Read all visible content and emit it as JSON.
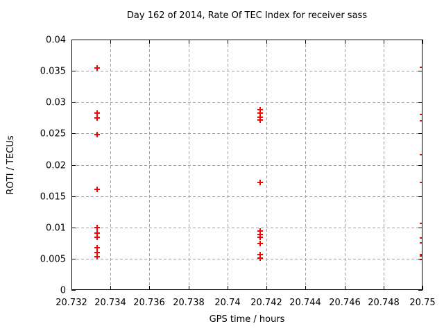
{
  "chart_data": {
    "type": "scatter",
    "title": "Day 162 of 2014, Rate Of TEC Index for receiver sass",
    "xlabel": "GPS time / hours",
    "ylabel": "ROTI / TECUs",
    "xlim": [
      20.732,
      20.75
    ],
    "ylim": [
      0,
      0.04
    ],
    "grid": true,
    "legend": "none",
    "x_ticks": {
      "values": [
        20.732,
        20.734,
        20.736,
        20.738,
        20.74,
        20.742,
        20.744,
        20.746,
        20.748,
        20.75
      ],
      "labels": [
        "20.732",
        "20.734",
        "20.736",
        "20.738",
        "20.74",
        "20.742",
        "20.744",
        "20.746",
        "20.748",
        "20.75"
      ]
    },
    "y_ticks": {
      "values": [
        0,
        0.005,
        0.01,
        0.015,
        0.02,
        0.025,
        0.03,
        0.035,
        0.04
      ],
      "labels": [
        "0",
        "0.005",
        "0.01",
        "0.015",
        "0.02",
        "0.025",
        "0.03",
        "0.035",
        "0.04"
      ]
    },
    "colors": {
      "marker": "#ff0000",
      "grid": "#9e9e9e",
      "axis": "#000000",
      "text": "#000000"
    },
    "marker": {
      "shape": "plus",
      "size": 9,
      "stroke_width": 2
    },
    "series": [
      {
        "name": "ROTI",
        "x": [
          20.73333,
          20.73333,
          20.73333,
          20.73333,
          20.73333,
          20.73333,
          20.73333,
          20.73333,
          20.73333,
          20.73333,
          20.73333,
          20.74167,
          20.74167,
          20.74167,
          20.74167,
          20.74167,
          20.74167,
          20.74167,
          20.74167,
          20.74167,
          20.74167,
          20.74167,
          20.75,
          20.75,
          20.75,
          20.75,
          20.75,
          20.75,
          20.75,
          20.75,
          20.75,
          20.75,
          20.75
        ],
        "y": [
          0.0355,
          0.0282,
          0.0275,
          0.0248,
          0.0161,
          0.01,
          0.0091,
          0.0084,
          0.0068,
          0.006,
          0.0053,
          0.0288,
          0.0283,
          0.0276,
          0.0271,
          0.0172,
          0.0094,
          0.0089,
          0.0084,
          0.0074,
          0.0056,
          0.0051,
          0.0356,
          0.028,
          0.027,
          0.0216,
          0.0172,
          0.0106,
          0.0083,
          0.0075,
          0.0057,
          0.0054,
          0.0049
        ]
      }
    ]
  }
}
